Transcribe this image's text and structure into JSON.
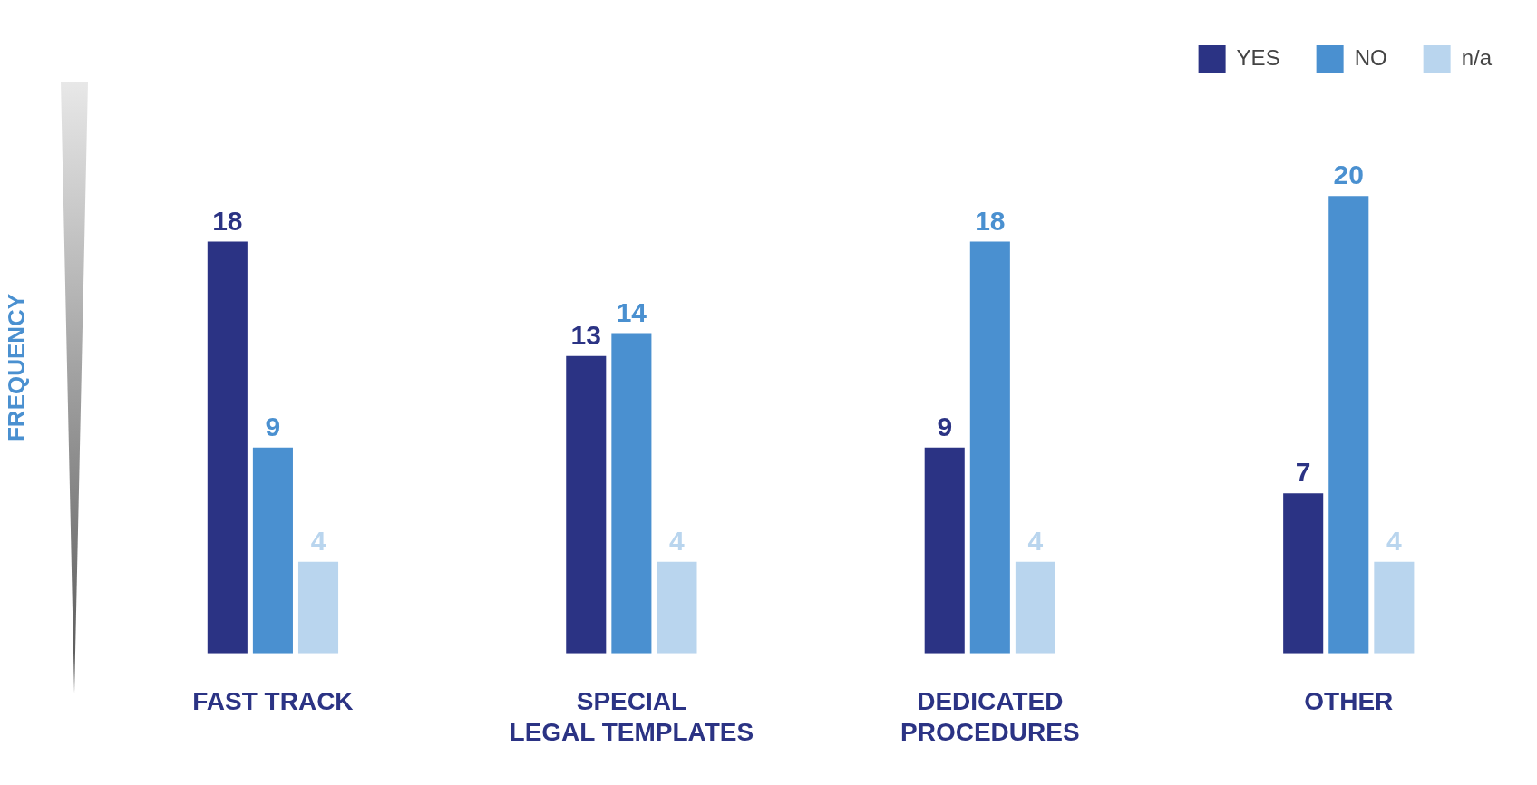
{
  "chart_data": {
    "type": "bar",
    "categories": [
      "FAST TRACK",
      "SPECIAL LEGAL TEMPLATES",
      "DEDICATED PROCEDURES",
      "OTHER"
    ],
    "ylabel": "FREQUENCY",
    "series": [
      {
        "name": "YES",
        "color": "#2b3384",
        "values": [
          18,
          13,
          9,
          7
        ]
      },
      {
        "name": "NO",
        "color": "#4a90d0",
        "values": [
          9,
          14,
          18,
          20
        ]
      },
      {
        "name": "n/a",
        "color": "#b9d5ee",
        "values": [
          4,
          4,
          4,
          4
        ]
      }
    ],
    "data_labels": true,
    "legend": "top right",
    "grid": false
  }
}
